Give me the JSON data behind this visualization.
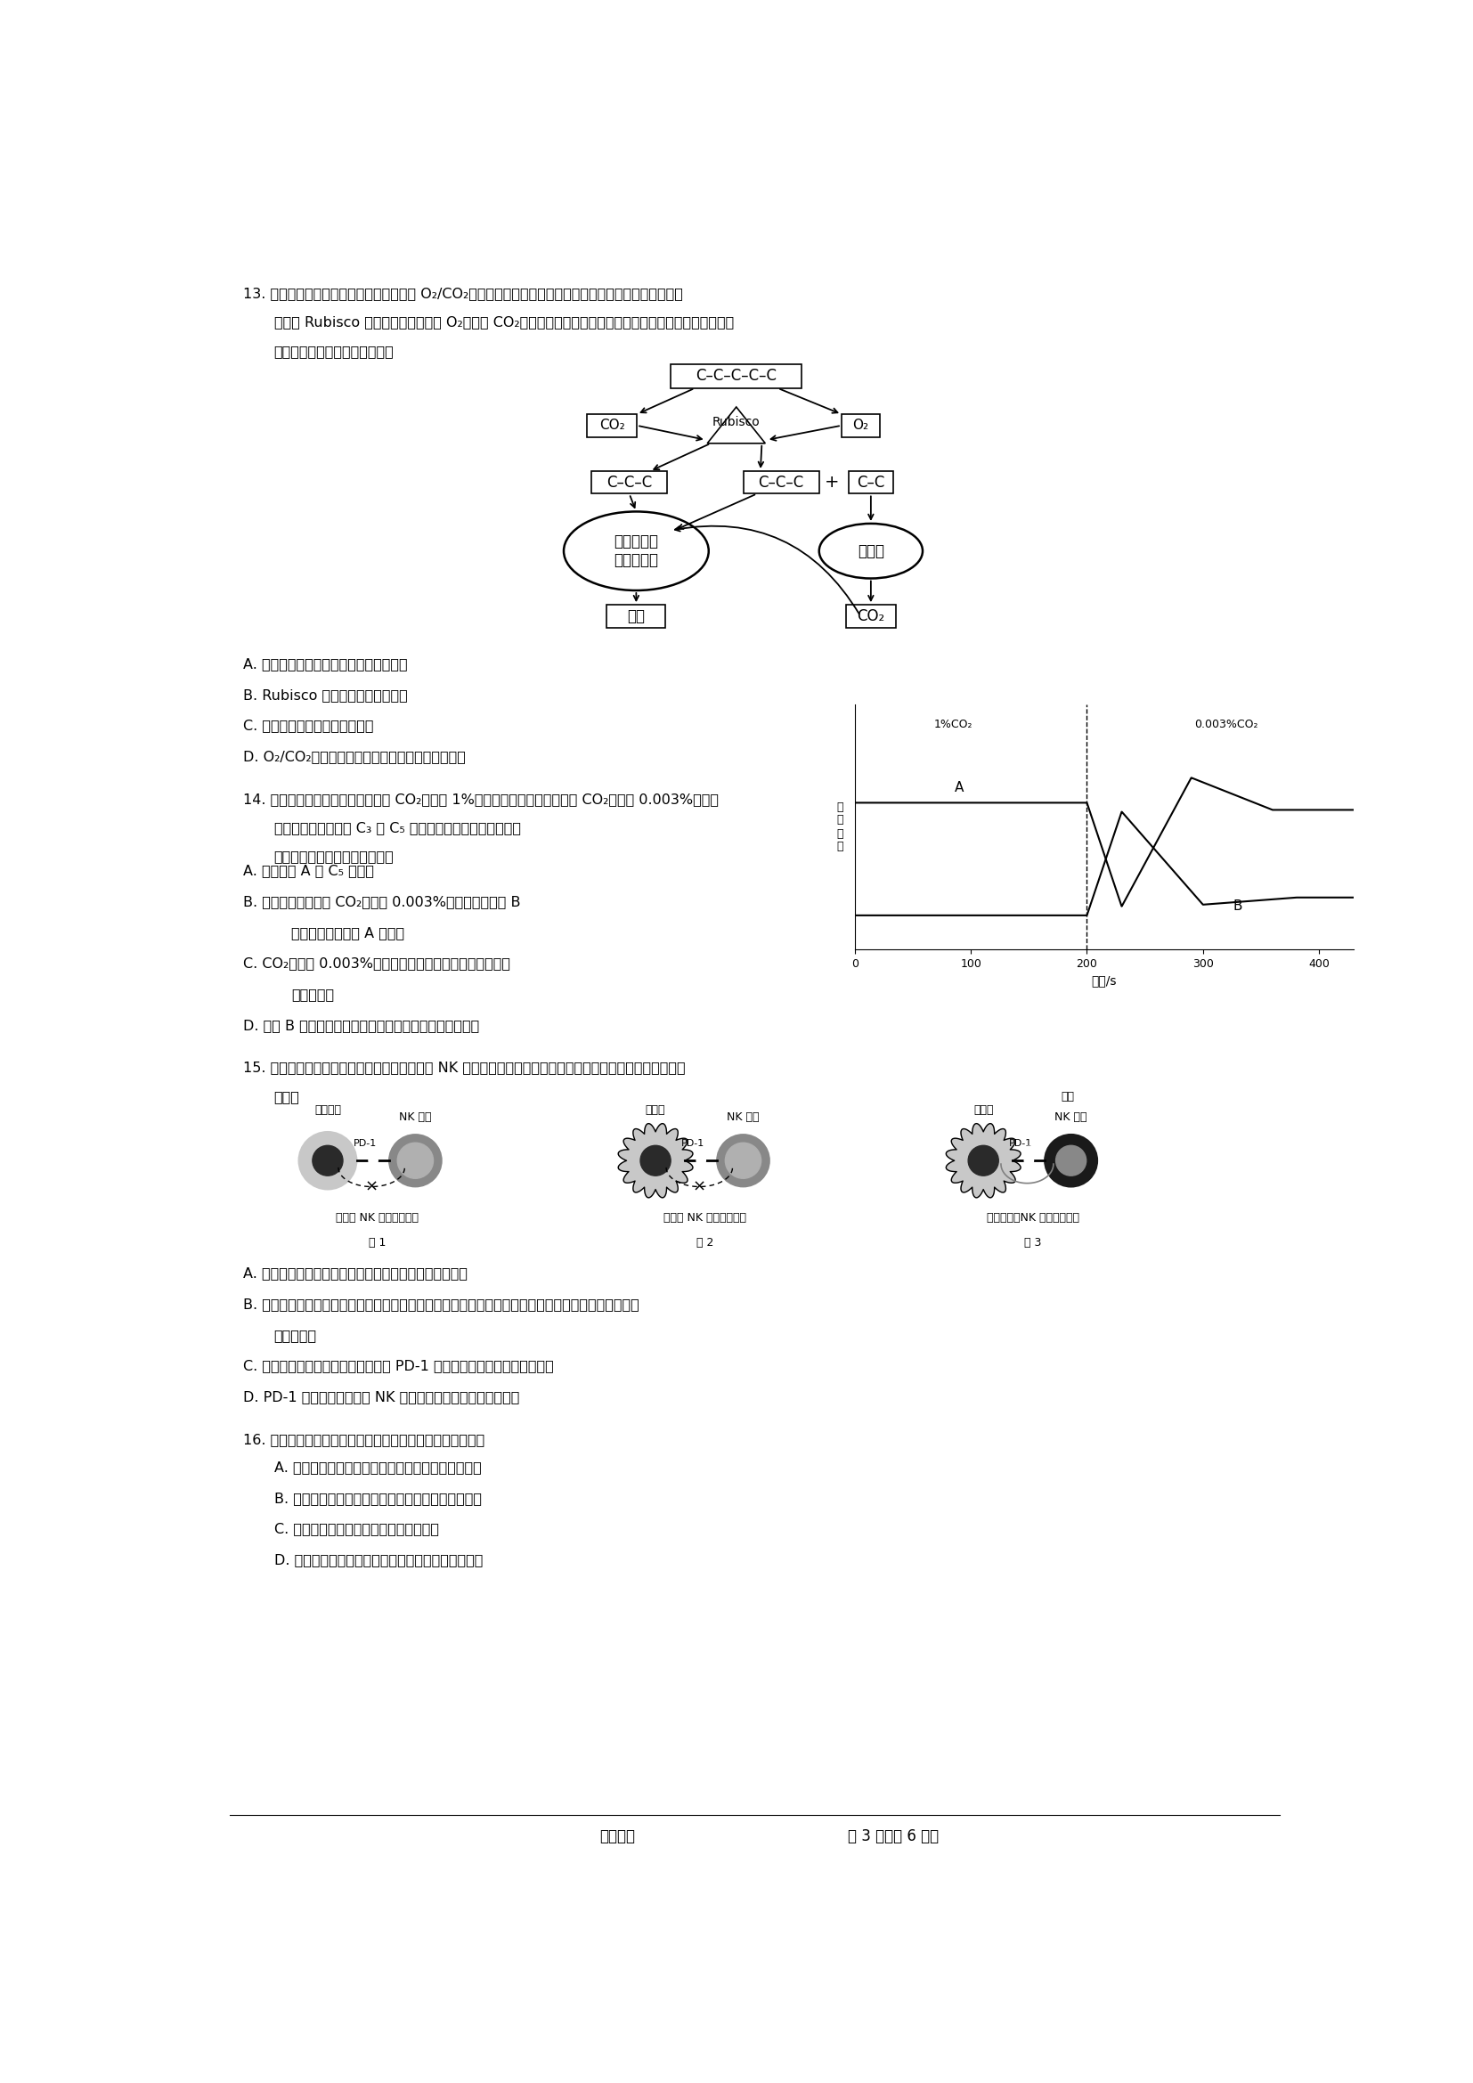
{
  "bg_color": "#ffffff",
  "page_width": 16.54,
  "page_height": 23.39,
  "ml": 0.85,
  "fs": 12.5,
  "fs_s": 11.5,
  "q13_line1": "13. 光呼吸时进行光合作用的细胞在光照和 O₂/CO₂値异常时发生的一种生理过程，如图所示，该过程细胞在",
  "q13_line2": "一种叫 Rubisco 的酶的催化下，消耗 O₂、生成 CO₂，借助叶绳体、线粒体等多种细胞器共同完成的消耗能量",
  "q13_line3": "的反应。下列有关叙述正确的是",
  "q13_A": "A. 细胞呼吸与光呼吸都是释放能量的过程",
  "q13_B": "B. Rubisco 存在场所为细胞质基质",
  "q13_C": "C. 绻色植物在光下只进行光呼吸",
  "q13_D": "D. O₂/CO₂値低时，有利于光合作用而不利于光呼吸",
  "q14_line1": "14. 在光照等适宜条件下，将培养在 CO₂浓度为 1%环境中的某植物迅速转移到 CO₂浓度为 0.003%的环境",
  "q14_line2": "中，其叶片暗反应中 C₃ 和 C₅ 化合物微摩尔浓度的变化趋势",
  "q14_line3": "如图所示，下列说法不正确的是",
  "q14_A": "A. 图中物质 A 是 C₅ 化合物",
  "q14_B": "B. 若该植物长期处于 CO₂浓度为 0.003%的环境中，物质 B",
  "q14_B2": "的浓度仍高于物质 A 的浓度",
  "q14_C": "C. CO₂浓度为 0.003%时，该植物光合速率最大时所需的光",
  "q14_C2": "照强度较弱",
  "q14_D": "D. 物质 B 升高的原因是合成速率不变，但消耗速率却减小",
  "q15_line1": "15. 某些癌细胞常常具有免疫逃逸现象，能躯避 NK 细胞（一种淡巴细胞）的攻击，其机理如下图。下列叙述正",
  "q15_line2": "确的是",
  "q15_A": "A. 癌细胞形成过程中，核酸不发生改变，蛋白质发生改变",
  "q15_B": "B. 致癌因子是癌细胞产生的根本原因，所以定期检查、远离致癌因子、选择健康的生活方式是预防癌症",
  "q15_B2": "的有效措施",
  "q15_C": "C. 逃逸癌细胞与正常细胞表面都有与 PD-1 蛋白识别的物贤，从而不被攻击",
  "q15_D": "D. PD-1 抑制剂类药物会使 NK 细胞清除癌细胞，不会有副作用",
  "q16_text": "16. 下列关于细胞分化、衰老、凋亡、癌变的叙述，正确的是",
  "q16_A": "A. 只要条件适宜，癌细胞就会迅速生长、分裂、分化",
  "q16_B": "B. 衰老细胞的相对表面积增大，但物质运输功能降低",
  "q16_C": "C. 细胞凋亡、细胞坏死均受到基因的控制",
  "q16_D": "D. 细胞分化导致基因的选择性表达，使细胞种类增多",
  "footer_l": "高三生物",
  "footer_r": "第 3 页（共 6 页）"
}
